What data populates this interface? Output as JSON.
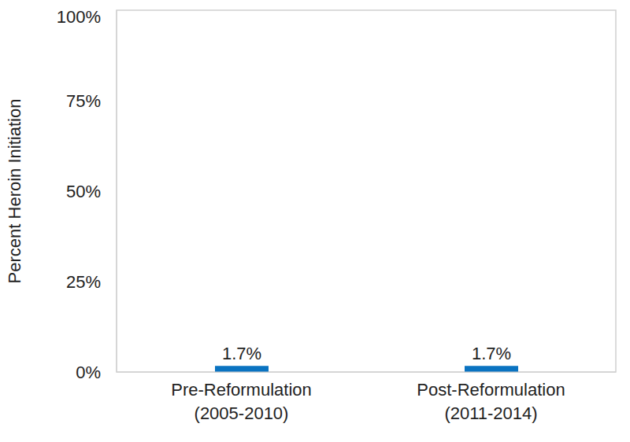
{
  "chart_data": {
    "type": "bar",
    "y_label": "Percent Heroin Initiation",
    "categories": [
      "Pre-Reformulation (2005-2010)",
      "Post-Reformulation (2011-2014)"
    ],
    "values": [
      1.7,
      1.7
    ],
    "value_labels": [
      "1.7%",
      "1.7%"
    ],
    "data_labels": true,
    "color": "#0a73c1",
    "ylim": [
      0,
      100
    ],
    "yticks": [
      {
        "value": 0,
        "label": "0%"
      },
      {
        "value": 25,
        "label": "25%"
      },
      {
        "value": 50,
        "label": "50%"
      },
      {
        "value": 75,
        "label": "75%"
      },
      {
        "value": 100,
        "label": "100%"
      }
    ],
    "grid": false
  }
}
